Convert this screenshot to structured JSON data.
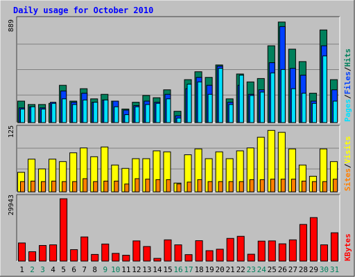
{
  "colors": {
    "background": "#c0c0c0",
    "panel": "#c0c0c0",
    "gridline": "#808080",
    "title": "#0000ff",
    "hits": "#00805c",
    "files": "#0040ff",
    "pages": "#00e0ff",
    "visits": "#ffff00",
    "sites": "#ff8000",
    "kbytes": "#ff0000",
    "weekday_label": "#000000",
    "weekend_label": "#00805c",
    "legend_separator": "#000000"
  },
  "chart_data": [
    {
      "type": "bar",
      "title": "Daily usage for October 2010",
      "panel": "hits-files-pages",
      "ymax_label": "889",
      "ylim": [
        0,
        889
      ],
      "grid": true,
      "legend": "right",
      "categories": [
        "1",
        "2",
        "3",
        "4",
        "5",
        "6",
        "7",
        "8",
        "9",
        "10",
        "11",
        "12",
        "13",
        "14",
        "15",
        "16",
        "17",
        "18",
        "19",
        "20",
        "21",
        "22",
        "23",
        "24",
        "25",
        "26",
        "27",
        "28",
        "29",
        "30",
        "31"
      ],
      "series": [
        {
          "name": "Hits",
          "color_key": "hits",
          "values": [
            190,
            160,
            160,
            170,
            330,
            190,
            300,
            210,
            250,
            190,
            120,
            180,
            240,
            220,
            290,
            100,
            380,
            450,
            400,
            510,
            210,
            430,
            360,
            390,
            680,
            890,
            650,
            540,
            260,
            820,
            380
          ]
        },
        {
          "name": "Files",
          "color_key": "files",
          "values": [
            130,
            140,
            130,
            180,
            280,
            180,
            260,
            180,
            200,
            190,
            110,
            150,
            190,
            180,
            250,
            60,
            300,
            400,
            330,
            500,
            180,
            330,
            250,
            290,
            530,
            850,
            480,
            420,
            190,
            680,
            290
          ]
        },
        {
          "name": "Pages",
          "color_key": "pages",
          "values": [
            120,
            140,
            120,
            170,
            210,
            160,
            200,
            180,
            200,
            140,
            70,
            140,
            160,
            170,
            210,
            40,
            340,
            360,
            250,
            480,
            160,
            420,
            240,
            270,
            440,
            470,
            300,
            260,
            170,
            590,
            190
          ]
        }
      ]
    },
    {
      "type": "bar",
      "panel": "visits-sites",
      "ymax_label": "125",
      "ylim": [
        0,
        125
      ],
      "grid": true,
      "legend": "right",
      "categories": [
        "1",
        "2",
        "3",
        "4",
        "5",
        "6",
        "7",
        "8",
        "9",
        "10",
        "11",
        "12",
        "13",
        "14",
        "15",
        "16",
        "17",
        "18",
        "19",
        "20",
        "21",
        "22",
        "23",
        "24",
        "25",
        "26",
        "27",
        "28",
        "29",
        "30",
        "31"
      ],
      "series": [
        {
          "name": "Visits",
          "color_key": "visits",
          "values": [
            40,
            67,
            47,
            67,
            62,
            80,
            90,
            72,
            92,
            55,
            48,
            68,
            68,
            84,
            82,
            18,
            76,
            88,
            68,
            82,
            68,
            84,
            90,
            112,
            126,
            122,
            88,
            55,
            32,
            88,
            62
          ]
        },
        {
          "name": "Sites",
          "color_key": "sites",
          "values": [
            21,
            22,
            21,
            22,
            21,
            21,
            27,
            21,
            22,
            22,
            16,
            27,
            26,
            25,
            25,
            16,
            20,
            25,
            21,
            21,
            21,
            21,
            25,
            25,
            26,
            26,
            26,
            22,
            21,
            21,
            26
          ]
        }
      ]
    },
    {
      "type": "bar",
      "panel": "kbytes",
      "ymax_label": "29943",
      "ylim": [
        0,
        29943
      ],
      "grid": false,
      "legend": "right",
      "categories": [
        "1",
        "2",
        "3",
        "4",
        "5",
        "6",
        "7",
        "8",
        "9",
        "10",
        "11",
        "12",
        "13",
        "14",
        "15",
        "16",
        "17",
        "18",
        "19",
        "20",
        "21",
        "22",
        "23",
        "24",
        "25",
        "26",
        "27",
        "28",
        "29",
        "30",
        "31"
      ],
      "series": [
        {
          "name": "KBytes",
          "color_key": "kbytes",
          "values": [
            8700,
            4500,
            7500,
            7800,
            30000,
            5500,
            11600,
            3200,
            8200,
            3700,
            2800,
            9700,
            7000,
            1300,
            10200,
            7800,
            3100,
            9800,
            5000,
            5700,
            10900,
            11900,
            3300,
            9600,
            9700,
            8300,
            10200,
            17600,
            20900,
            7800,
            13600
          ]
        }
      ]
    }
  ],
  "x_axis": {
    "labels": [
      "1",
      "2",
      "3",
      "4",
      "5",
      "6",
      "7",
      "8",
      "9",
      "10",
      "11",
      "12",
      "13",
      "14",
      "15",
      "16",
      "17",
      "18",
      "19",
      "20",
      "21",
      "22",
      "23",
      "24",
      "25",
      "26",
      "27",
      "28",
      "29",
      "30",
      "31"
    ],
    "weekend": [
      false,
      true,
      true,
      false,
      false,
      false,
      false,
      false,
      true,
      true,
      false,
      false,
      false,
      false,
      false,
      true,
      true,
      false,
      false,
      false,
      false,
      false,
      true,
      true,
      false,
      false,
      false,
      false,
      false,
      true,
      true
    ]
  },
  "legend_top": [
    {
      "text": "Pages",
      "color_key": "pages"
    },
    {
      "text": "/",
      "color_key": "legend_separator"
    },
    {
      "text": "Files",
      "color_key": "files"
    },
    {
      "text": "/",
      "color_key": "legend_separator"
    },
    {
      "text": "Hits",
      "color_key": "hits"
    }
  ],
  "legend_middle": [
    {
      "text": "Sites",
      "color_key": "sites"
    },
    {
      "text": "/",
      "color_key": "legend_separator"
    },
    {
      "text": "Visits",
      "color_key": "visits"
    }
  ],
  "legend_bottom": [
    {
      "text": "KBytes",
      "color_key": "kbytes"
    }
  ]
}
